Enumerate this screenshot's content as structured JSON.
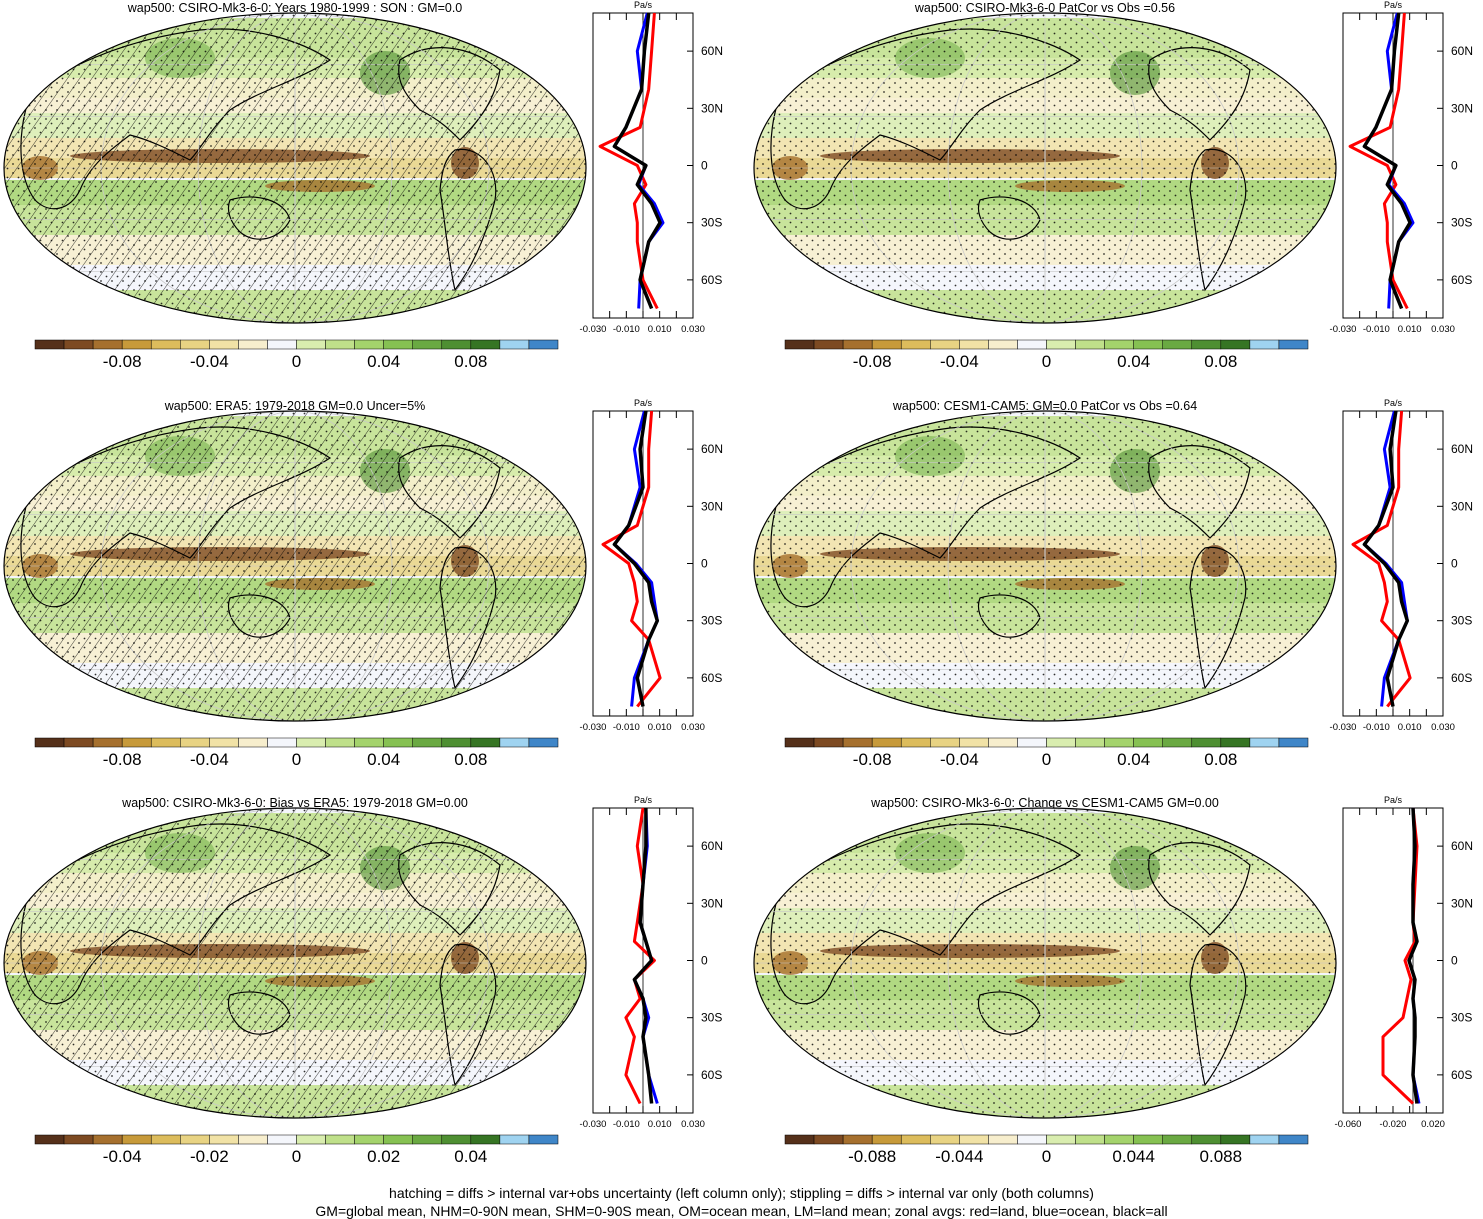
{
  "colors": {
    "palette": [
      "#55301a",
      "#7d4a22",
      "#a6702e",
      "#c79a3a",
      "#dcbc5c",
      "#e8d383",
      "#f1e2a6",
      "#f7eecd",
      "#f4f6fb",
      "#d9edaf",
      "#bfe08a",
      "#a4d36c",
      "#86c152",
      "#6aa942",
      "#4e8f32",
      "#367524",
      "#9fd3f0",
      "#3f86c8"
    ],
    "ocean": "#f4f6fb",
    "land_line": "#000000",
    "zonal_land": "#ff0000",
    "zonal_ocean": "#0000ff",
    "zonal_all": "#000000"
  },
  "zonal_units": "Pa/s",
  "lat_labels": [
    "60N",
    "30N",
    "0",
    "30S",
    "60S"
  ],
  "panels": [
    {
      "title": "wap500: CSIRO-Mk3-6-0: Years 1980-1999 : SON : GM=0.0",
      "colorbar_labels": [
        "-0.08",
        "-0.04",
        "0",
        "0.04",
        "0.08"
      ],
      "zonal_ticks": [
        "-0.030",
        "-0.010",
        "0.010",
        "0.030"
      ],
      "hatching": true
    },
    {
      "title": "wap500: CSIRO-Mk3-6-0 PatCor vs Obs =0.56",
      "colorbar_labels": [
        "-0.08",
        "-0.04",
        "0",
        "0.04",
        "0.08"
      ],
      "zonal_ticks": [
        "-0.030",
        "-0.010",
        "0.010",
        "0.030"
      ],
      "hatching": false
    },
    {
      "title": "wap500: ERA5: 1979-2018 GM=0.0 Uncer=5%",
      "colorbar_labels": [
        "-0.08",
        "-0.04",
        "0",
        "0.04",
        "0.08"
      ],
      "zonal_ticks": [
        "-0.030",
        "-0.010",
        "0.010",
        "0.030"
      ],
      "hatching": true
    },
    {
      "title": "wap500: CESM1-CAM5: GM=0.0 PatCor vs Obs =0.64",
      "colorbar_labels": [
        "-0.08",
        "-0.04",
        "0",
        "0.04",
        "0.08"
      ],
      "zonal_ticks": [
        "-0.030",
        "-0.010",
        "0.010",
        "0.030"
      ],
      "hatching": false
    },
    {
      "title": "wap500: CSIRO-Mk3-6-0: Bias vs ERA5: 1979-2018  GM=0.00",
      "colorbar_labels": [
        "-0.04",
        "-0.02",
        "0",
        "0.02",
        "0.04"
      ],
      "zonal_ticks": [
        "-0.030",
        "-0.010",
        "0.010",
        "0.030"
      ],
      "hatching": true
    },
    {
      "title": "wap500: CSIRO-Mk3-6-0: Change vs CESM1-CAM5 GM=0.00",
      "colorbar_labels": [
        "-0.088",
        "-0.044",
        "0",
        "0.044",
        "0.088"
      ],
      "zonal_ticks": [
        "-0.060",
        "-0.020",
        "0.020"
      ],
      "hatching": false
    }
  ],
  "notes": {
    "line1": "hatching = diffs > internal var+obs uncertainty (left column only); stippling = diffs > internal var only (both columns)",
    "line2": "GM=global mean, NHM=0-90N mean, SHM=0-90S mean, OM=ocean mean, LM=land mean; zonal avgs: red=land, blue=ocean, black=all"
  },
  "chart_data": [
    {
      "type": "heatmap",
      "title": "wap500: CSIRO-Mk3-6-0: Years 1980-1999 : SON : GM=0.0",
      "field": "wap500",
      "units": "Pa/s",
      "colorbar_ticks": [
        -0.08,
        -0.04,
        0,
        0.04,
        0.08
      ],
      "zonal_mean": {
        "lat": [
          80,
          60,
          40,
          20,
          10,
          0,
          -10,
          -20,
          -30,
          -40,
          -60,
          -75
        ],
        "all": [
          0.004,
          0.001,
          -0.001,
          -0.012,
          -0.02,
          0.002,
          -0.004,
          0.006,
          0.012,
          0.004,
          -0.002,
          0.006
        ],
        "ocean": [
          0.003,
          -0.004,
          -0.001,
          -0.012,
          -0.02,
          0.002,
          -0.003,
          0.008,
          0.014,
          0.004,
          -0.002,
          -0.003
        ],
        "land": [
          0.008,
          0.006,
          0.004,
          -0.002,
          -0.03,
          -0.004,
          0.002,
          -0.006,
          -0.004,
          -0.004,
          0.0,
          0.01
        ]
      }
    },
    {
      "type": "heatmap",
      "title": "wap500: CSIRO-Mk3-6-0 PatCor vs Obs =0.56",
      "field": "wap500",
      "units": "Pa/s",
      "colorbar_ticks": [
        -0.08,
        -0.04,
        0,
        0.04,
        0.08
      ],
      "zonal_mean": {
        "lat": [
          80,
          60,
          40,
          20,
          10,
          0,
          -10,
          -20,
          -30,
          -40,
          -60,
          -75
        ],
        "all": [
          0.004,
          0.001,
          -0.001,
          -0.012,
          -0.02,
          0.002,
          -0.004,
          0.006,
          0.012,
          0.004,
          -0.002,
          0.006
        ],
        "ocean": [
          0.003,
          -0.004,
          -0.001,
          -0.012,
          -0.02,
          0.002,
          -0.003,
          0.008,
          0.014,
          0.004,
          -0.002,
          -0.003
        ],
        "land": [
          0.008,
          0.006,
          0.004,
          -0.002,
          -0.03,
          -0.004,
          0.002,
          -0.006,
          -0.004,
          -0.004,
          0.0,
          0.01
        ]
      }
    },
    {
      "type": "heatmap",
      "title": "wap500: ERA5: 1979-2018 GM=0.0 Uncer=5%",
      "field": "wap500",
      "units": "Pa/s",
      "colorbar_ticks": [
        -0.08,
        -0.04,
        0,
        0.04,
        0.08
      ],
      "zonal_mean": {
        "lat": [
          80,
          60,
          40,
          20,
          10,
          0,
          -10,
          -20,
          -30,
          -40,
          -60,
          -75
        ],
        "all": [
          0.002,
          -0.002,
          0.0,
          -0.01,
          -0.02,
          -0.006,
          0.004,
          0.006,
          0.01,
          0.004,
          -0.004,
          0.0
        ],
        "ocean": [
          0.001,
          -0.006,
          -0.002,
          -0.01,
          -0.02,
          -0.005,
          0.006,
          0.008,
          0.01,
          0.004,
          -0.006,
          -0.008
        ],
        "land": [
          0.006,
          0.004,
          0.004,
          -0.004,
          -0.028,
          -0.01,
          -0.006,
          -0.004,
          -0.008,
          0.004,
          0.012,
          -0.004
        ]
      }
    },
    {
      "type": "heatmap",
      "title": "wap500: CESM1-CAM5: GM=0.0 PatCor vs Obs =0.64",
      "field": "wap500",
      "units": "Pa/s",
      "colorbar_ticks": [
        -0.08,
        -0.04,
        0,
        0.04,
        0.08
      ],
      "zonal_mean": {
        "lat": [
          80,
          60,
          40,
          20,
          10,
          0,
          -10,
          -20,
          -30,
          -40,
          -60,
          -75
        ],
        "all": [
          0.002,
          -0.002,
          0.0,
          -0.01,
          -0.02,
          -0.006,
          0.004,
          0.006,
          0.01,
          0.004,
          -0.004,
          0.0
        ],
        "ocean": [
          0.001,
          -0.006,
          -0.002,
          -0.01,
          -0.02,
          -0.005,
          0.006,
          0.008,
          0.01,
          0.004,
          -0.006,
          -0.008
        ],
        "land": [
          0.006,
          0.004,
          0.004,
          -0.004,
          -0.028,
          -0.01,
          -0.006,
          -0.004,
          -0.008,
          0.004,
          0.012,
          -0.004
        ]
      }
    },
    {
      "type": "heatmap",
      "title": "wap500: CSIRO-Mk3-6-0: Bias vs ERA5: 1979-2018  GM=0.00",
      "field": "wap500",
      "units": "Pa/s",
      "colorbar_ticks": [
        -0.04,
        -0.02,
        0,
        0.02,
        0.04
      ],
      "zonal_mean": {
        "lat": [
          80,
          60,
          40,
          20,
          10,
          0,
          -10,
          -20,
          -30,
          -40,
          -60,
          -75
        ],
        "all": [
          0.002,
          0.002,
          0.0,
          -0.002,
          0.002,
          0.006,
          -0.006,
          0.0,
          0.002,
          0.0,
          0.004,
          0.006
        ],
        "ocean": [
          0.002,
          0.003,
          0.0,
          -0.002,
          0.002,
          0.006,
          -0.006,
          0.0,
          0.004,
          0.0,
          0.004,
          0.01
        ],
        "land": [
          0.0,
          -0.004,
          0.0,
          -0.004,
          -0.006,
          0.008,
          -0.006,
          -0.002,
          -0.012,
          -0.006,
          -0.012,
          -0.002
        ]
      }
    },
    {
      "type": "heatmap",
      "title": "wap500: CSIRO-Mk3-6-0: Change vs CESM1-CAM5 GM=0.00",
      "field": "wap500",
      "units": "Pa/s",
      "colorbar_ticks": [
        -0.088,
        -0.044,
        0,
        0.044,
        0.088
      ],
      "zonal_mean": {
        "lat": [
          80,
          60,
          40,
          20,
          10,
          0,
          -10,
          -20,
          -30,
          -40,
          -60,
          -75
        ],
        "all": [
          0.0,
          0.002,
          0.0,
          0.0,
          0.004,
          -0.004,
          0.002,
          0.0,
          0.002,
          0.002,
          0.0,
          0.004
        ],
        "ocean": [
          0.0,
          0.002,
          0.0,
          0.0,
          0.004,
          -0.004,
          0.002,
          0.0,
          0.002,
          0.002,
          0.0,
          0.006
        ],
        "land": [
          0.0,
          0.004,
          0.002,
          0.0,
          0.002,
          -0.008,
          -0.002,
          -0.006,
          -0.01,
          -0.03,
          -0.03,
          0.0
        ]
      }
    }
  ]
}
